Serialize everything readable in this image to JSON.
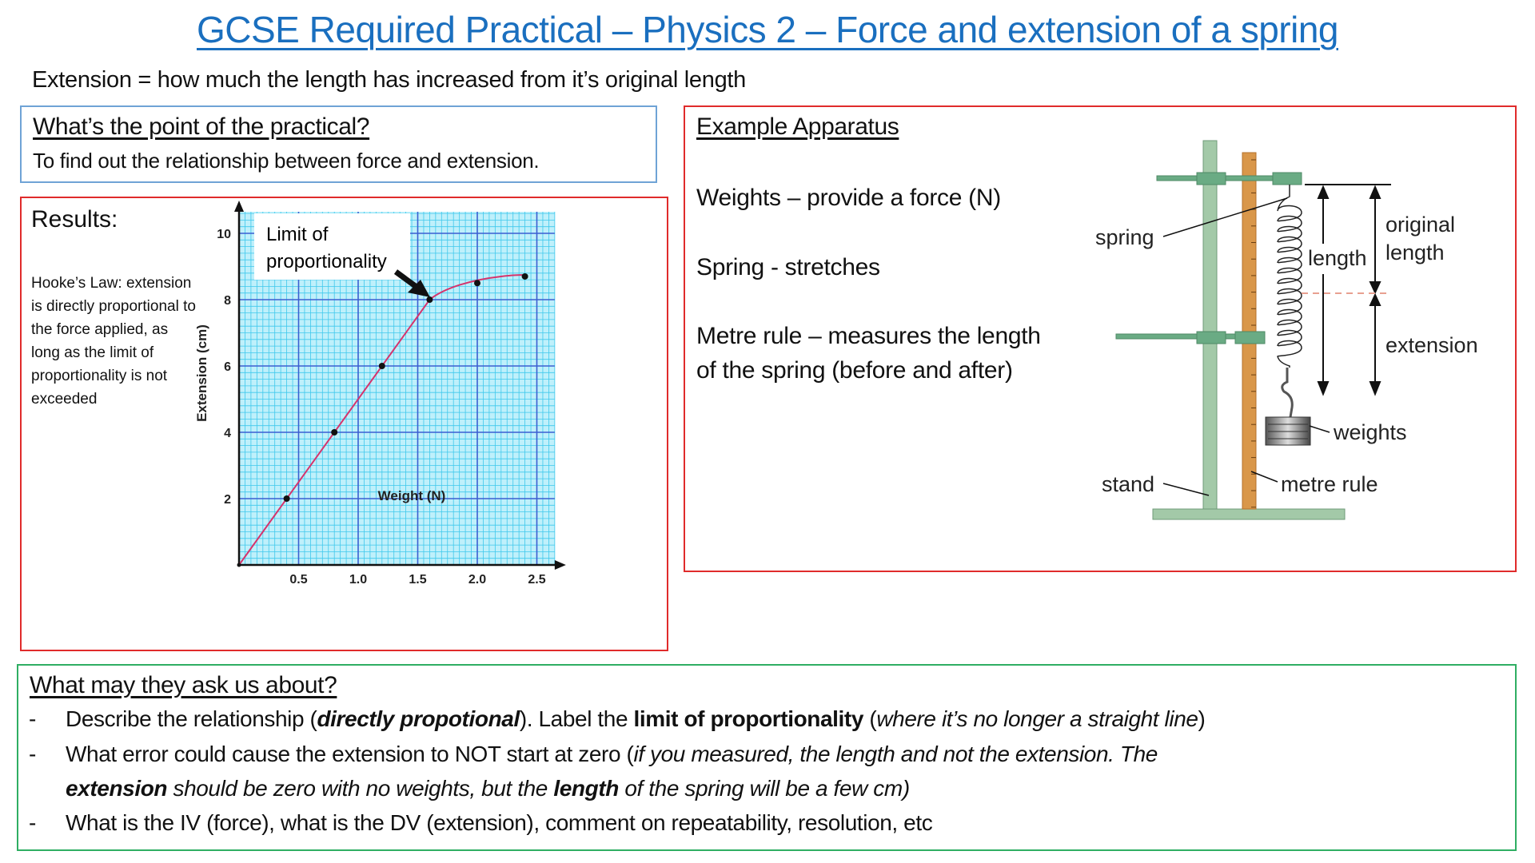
{
  "title": "GCSE Required Practical – Physics 2 – Force and extension of a spring",
  "definition": "Extension = how much the length has increased from it’s original length",
  "point": {
    "heading": "What’s the point of the practical?",
    "text": "To find out the relationship between force and extension."
  },
  "results": {
    "heading": "Results:",
    "hooke": "Hooke’s Law: extension is directly proportional to the force applied, as long as the limit of proportionality is not exceeded"
  },
  "chart_data": {
    "type": "line",
    "xlabel": "Weight (N)",
    "ylabel": "Extension (cm)",
    "xlim": [
      0,
      2.65
    ],
    "ylim": [
      0,
      10.65
    ],
    "x_ticks": [
      "0.5",
      "1.0",
      "1.5",
      "2.0",
      "2.5"
    ],
    "y_ticks": [
      "2",
      "4",
      "6",
      "8",
      "10"
    ],
    "grid": true,
    "points": [
      {
        "x": 0,
        "y": 0
      },
      {
        "x": 0.4,
        "y": 2
      },
      {
        "x": 0.8,
        "y": 4
      },
      {
        "x": 1.2,
        "y": 6
      },
      {
        "x": 1.6,
        "y": 8
      },
      {
        "x": 2.0,
        "y": 8.5
      },
      {
        "x": 2.4,
        "y": 8.7
      }
    ],
    "annotation": {
      "line1": "Limit of",
      "line2": "proportionality",
      "x": 1.6,
      "y": 8
    },
    "colors": {
      "curve": "#d6336c",
      "minor_grid": "#3fc8ec",
      "major_grid": "#3b5fd1",
      "background": "#bff0fb"
    }
  },
  "apparatus": {
    "heading": "Example Apparatus",
    "weights_line": "Weights – provide a force (N)",
    "spring_line": "Spring - stretches",
    "rule_line1": "Metre rule – measures the length",
    "rule_line2": "of the spring (before and after)",
    "diagram": {
      "spring": "spring",
      "length": "length",
      "original1": "original",
      "original2": "length",
      "extension": "extension",
      "weights": "weights",
      "stand": "stand",
      "metre_rule": "metre rule"
    }
  },
  "ask": {
    "heading": "What may they ask us about?",
    "dash": "-",
    "b1": {
      "a": "Describe the relationship (",
      "b": "directly propotional",
      "c": "). Label the ",
      "d": "limit of proportionality",
      "e": " (",
      "f": "where it’s no longer a straight line",
      "g": ")"
    },
    "b2": {
      "a": "What error could cause the extension to NOT start at zero (",
      "b": "if you measured, the length and not the extension. The"
    },
    "b2cont": {
      "a": "extension",
      "b": " should be zero with no weights, but the ",
      "c": "length",
      "d": " of the spring will be a few cm)"
    },
    "b3": "What is the IV (force), what is the DV (extension), comment on repeatability, resolution, etc"
  }
}
